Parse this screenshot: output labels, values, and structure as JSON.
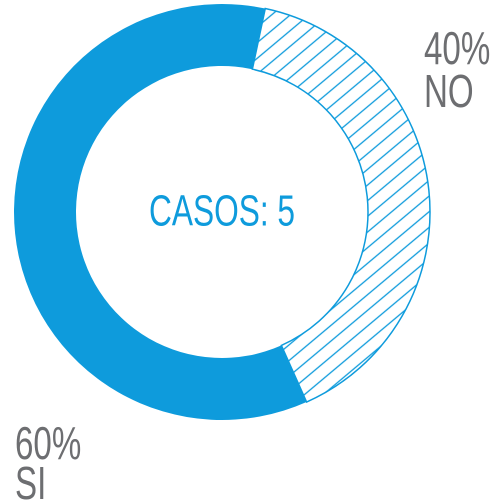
{
  "chart_data": {
    "type": "pie",
    "donut": true,
    "categories": [
      "NO",
      "SI"
    ],
    "values": [
      40,
      60
    ],
    "value_labels": [
      "40%",
      "60%"
    ],
    "color": "#0e9bdc",
    "center_label": "CASOS: 5"
  }
}
